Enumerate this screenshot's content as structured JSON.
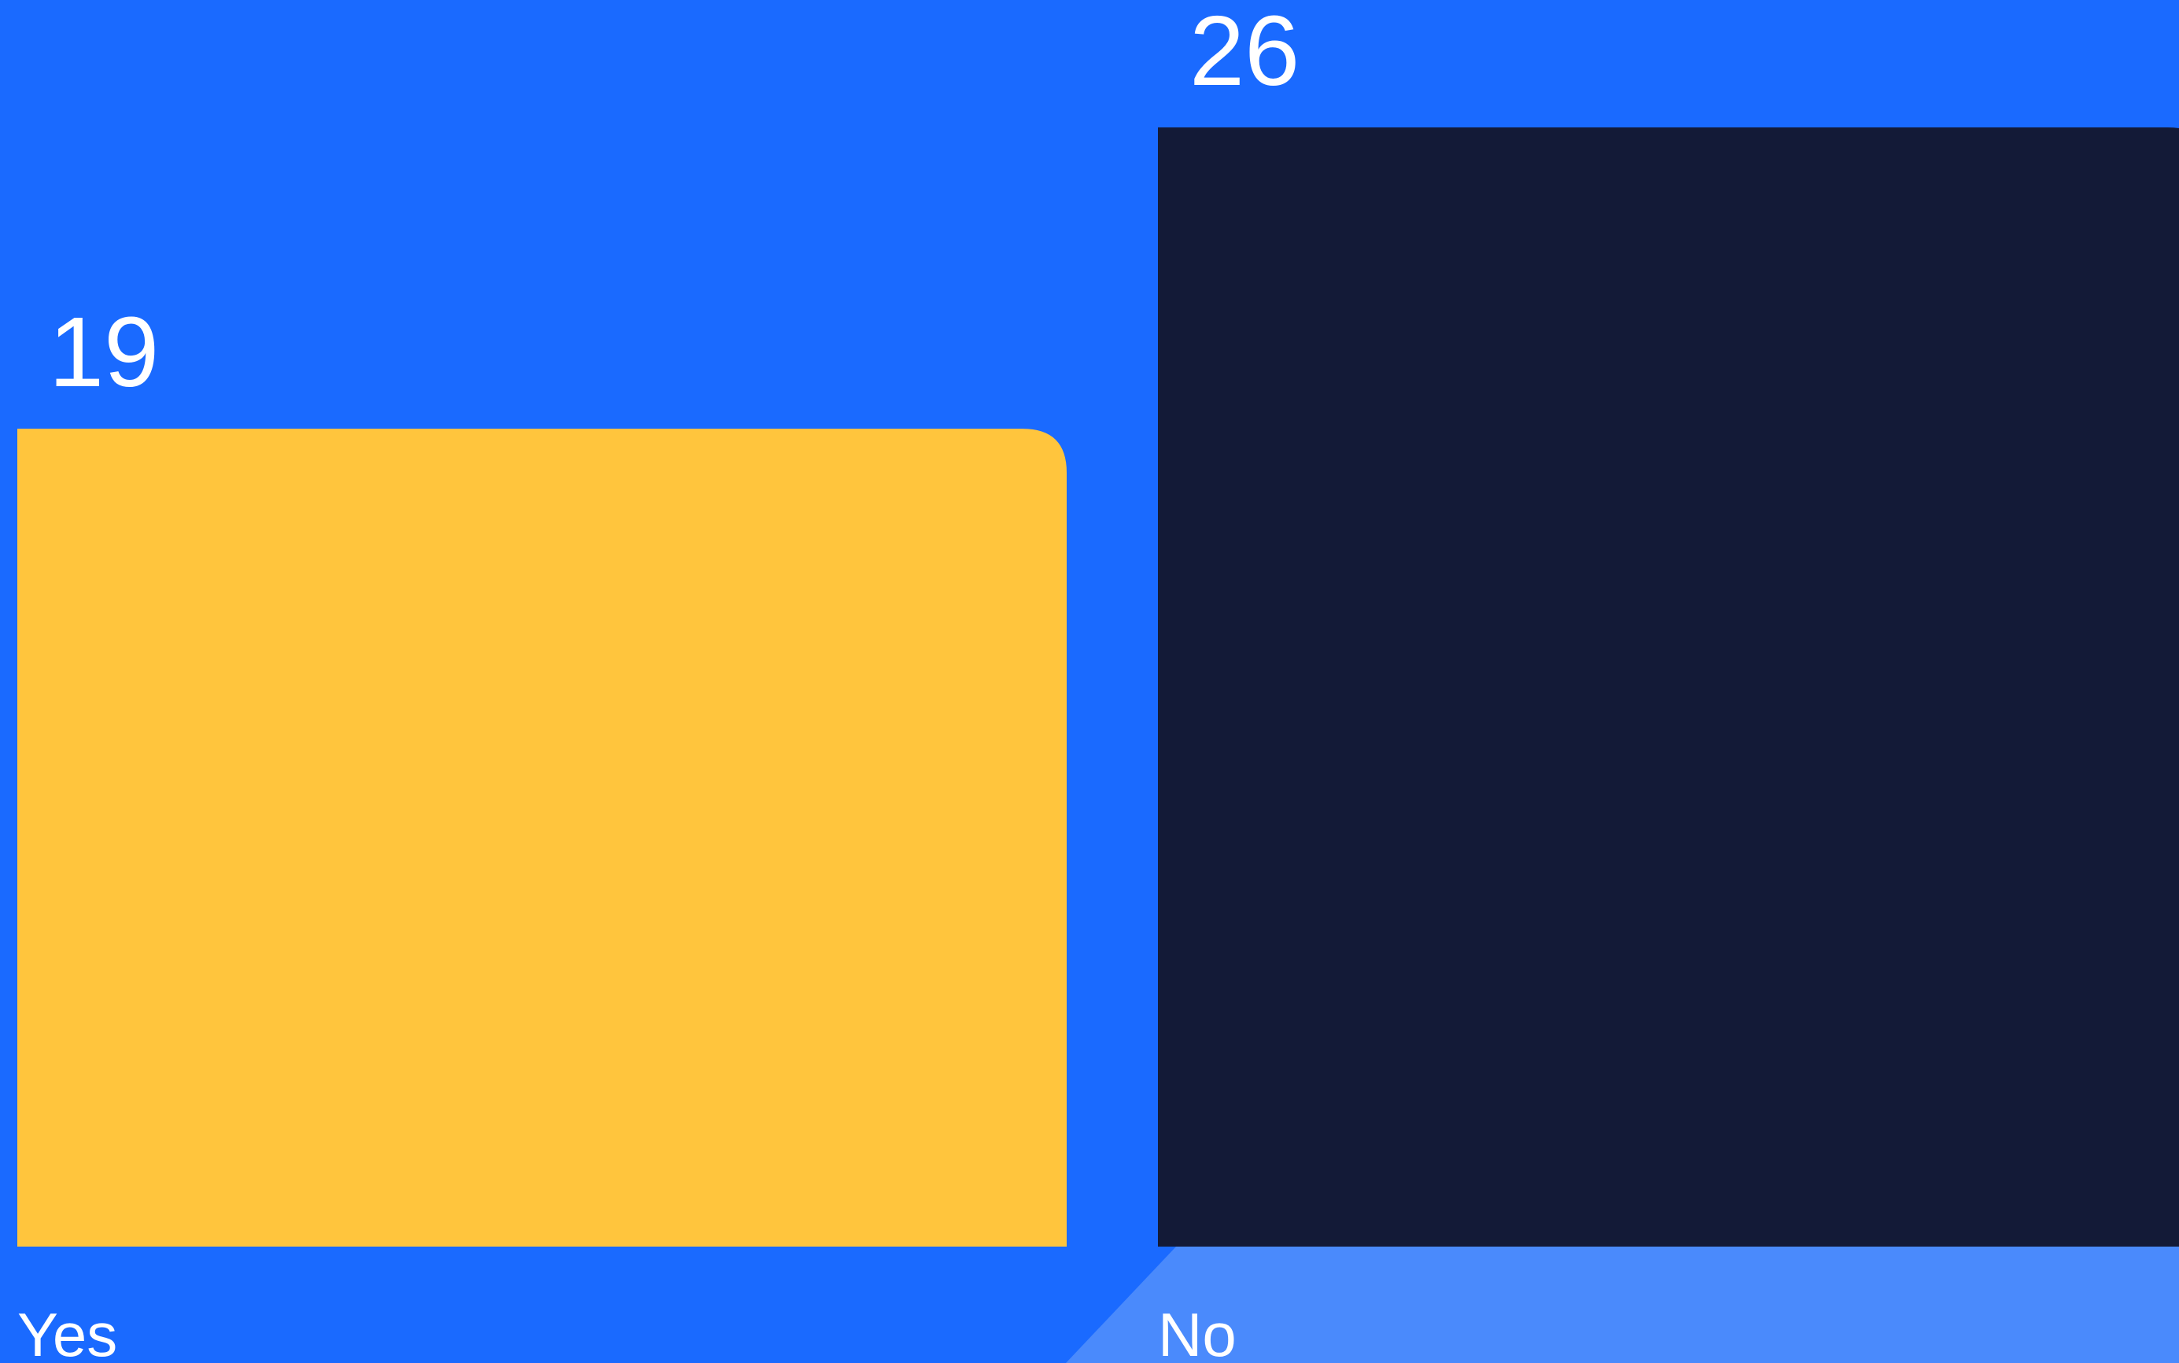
{
  "colors": {
    "background": "#1a6aff",
    "floor_panel": "#4a8afc",
    "bar_yes": "#ffc53d",
    "bar_no": "#131a37",
    "label": "#ffffff"
  },
  "chart_data": {
    "type": "bar",
    "categories": [
      "Yes",
      "No"
    ],
    "values": [
      19,
      26
    ],
    "ylim": [
      0,
      26
    ],
    "grid": false,
    "legend": "none"
  }
}
